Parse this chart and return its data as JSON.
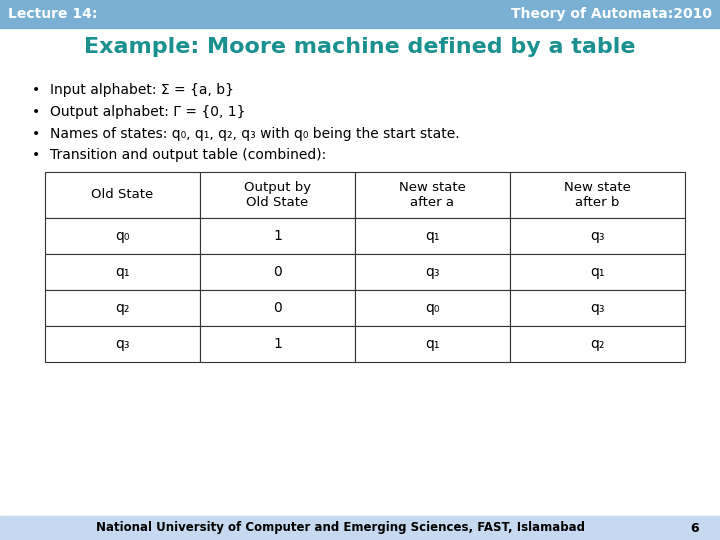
{
  "header_left": "Lecture 14:",
  "header_right": "Theory of Automata:2010",
  "header_bg": "#7ab0d4",
  "header_text_color": "#ffffff",
  "title": "Example: Moore machine defined by a table",
  "title_color": "#1a9090",
  "slide_bg": "#ffffff",
  "bullet1": "Input alphabet: Σ = {a, b}",
  "bullet2": "Output alphabet: Γ = {0, 1}",
  "bullet3_pre": "Names of states: q",
  "bullet3_subs": [
    "0",
    "1",
    "2",
    "3"
  ],
  "bullet3_mid": ", q",
  "bullet3_end": " with q",
  "bullet3_tail": " being the start state.",
  "bullet4": "Transition and output table (combined):",
  "table_col1_header": "Old State",
  "table_col2_header": "Output by\nOld State",
  "table_col3_header": "New state\nafter a",
  "table_col4_header": "New state\nafter b",
  "table_rows": [
    [
      "q₀",
      "1",
      "q₁",
      "q₃"
    ],
    [
      "q₁",
      "0",
      "q₃",
      "q₁"
    ],
    [
      "q₂",
      "0",
      "q₀",
      "q₃"
    ],
    [
      "q₃",
      "1",
      "q₁",
      "q₂"
    ]
  ],
  "table_border_color": "#333333",
  "footer_text": "National University of Computer and Emerging Sciences, FAST, Islamabad",
  "footer_page": "6",
  "footer_bg": "#c5d9f1",
  "footer_text_color": "#000000"
}
